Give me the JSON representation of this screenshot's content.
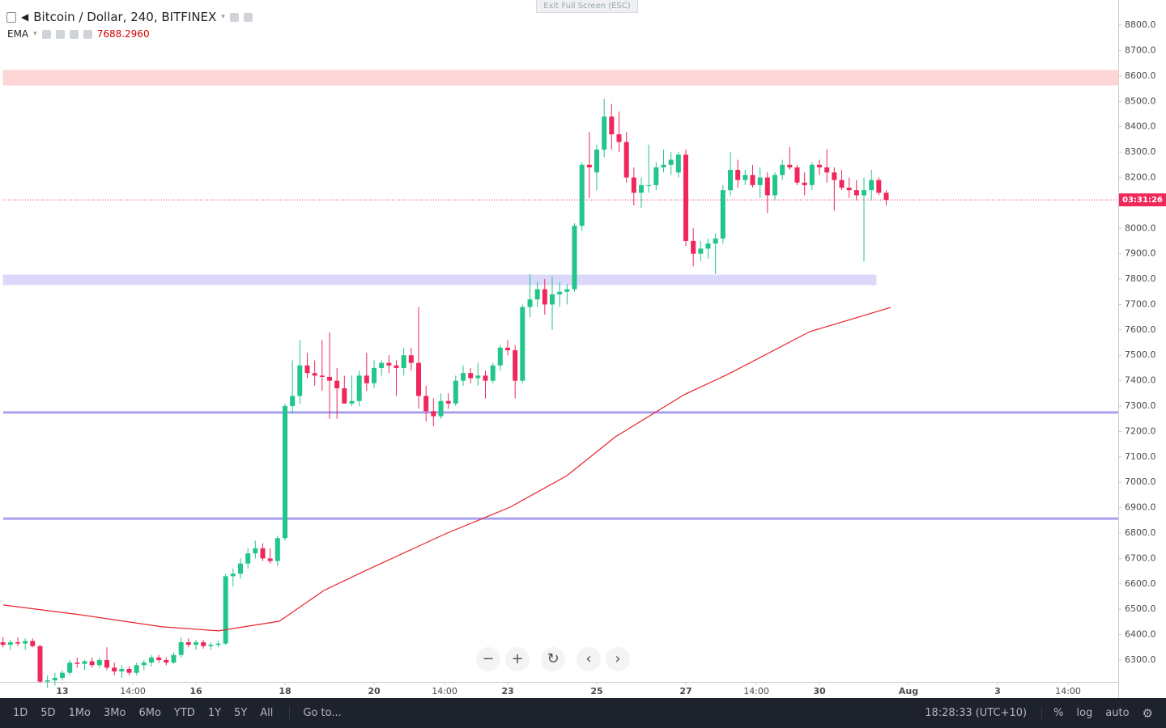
{
  "header": {
    "symbol": "Bitcoin / Dollar, 240, BITFINEX",
    "indicator": "EMA",
    "indicator_value": "7688.2960",
    "exit_fullscreen": "Exit Full Screen (ESC)"
  },
  "toolbar": {
    "ranges": [
      "1D",
      "5D",
      "1Mo",
      "3Mo",
      "6Mo",
      "YTD",
      "1Y",
      "5Y",
      "All"
    ],
    "goto": "Go to...",
    "clock": "18:28:33 (UTC+10)",
    "options": [
      "%",
      "log",
      "auto"
    ]
  },
  "chart_data": {
    "type": "candlestick",
    "up_color": "#22c58b",
    "down_color": "#f0275b",
    "xlim": [
      11.673,
      36.709
    ],
    "ylim": [
      6214,
      8899
    ],
    "xticks": [
      13,
      {
        "value": 14.583,
        "label": "14:00"
      },
      16,
      18,
      20,
      {
        "value": 21.583,
        "label": "14:00"
      },
      23,
      25,
      27,
      {
        "value": 28.583,
        "label": "14:00"
      },
      30,
      {
        "value": 32,
        "label": "Aug"
      },
      {
        "value": 34,
        "label": "3"
      },
      {
        "value": 35.583,
        "label": "14:00"
      }
    ],
    "yticks": [
      {
        "value": 6300,
        "label": "6300.0"
      },
      {
        "value": 6400,
        "label": "6400.0"
      },
      {
        "value": 6500,
        "label": "6500.0"
      },
      {
        "value": 6600,
        "label": "6600.0"
      },
      {
        "value": 6700,
        "label": "6700.0"
      },
      {
        "value": 6800,
        "label": "6800.0"
      },
      {
        "value": 6900,
        "label": "6900.0"
      },
      {
        "value": 7000,
        "label": "7000.0"
      },
      {
        "value": 7100,
        "label": "7100.0"
      },
      {
        "value": 7200,
        "label": "7200.0"
      },
      {
        "value": 7300,
        "label": "7300.0"
      },
      {
        "value": 7400,
        "label": "7400.0"
      },
      {
        "value": 7500,
        "label": "7500.0"
      },
      {
        "value": 7600,
        "label": "7600.0"
      },
      {
        "value": 7700,
        "label": "7700.0"
      },
      {
        "value": 7800,
        "label": "7800.0"
      },
      {
        "value": 7900,
        "label": "7900.0"
      },
      {
        "value": 8000,
        "label": "8000.0"
      },
      {
        "value": 8100,
        "label": "8100.0"
      },
      {
        "value": 8200,
        "label": "8200.0"
      },
      {
        "value": 8300,
        "label": "8300.0"
      },
      {
        "value": 8400,
        "label": "8400.0"
      },
      {
        "value": 8500,
        "label": "8500.0"
      },
      {
        "value": 8600,
        "label": "8600.0"
      },
      {
        "value": 8700,
        "label": "8700.0"
      },
      {
        "value": 8800,
        "label": "8800.0"
      }
    ],
    "x": [
      11.667,
      11.833,
      12,
      12.167,
      12.333,
      12.5,
      12.667,
      12.833,
      13,
      13.167,
      13.333,
      13.5,
      13.667,
      13.833,
      14,
      14.167,
      14.333,
      14.5,
      14.667,
      14.833,
      15,
      15.167,
      15.333,
      15.5,
      15.667,
      15.833,
      16,
      16.167,
      16.333,
      16.5,
      16.667,
      16.833,
      17,
      17.167,
      17.333,
      17.5,
      17.667,
      17.833,
      18,
      18.167,
      18.333,
      18.5,
      18.667,
      18.833,
      19,
      19.167,
      19.333,
      19.5,
      19.667,
      19.833,
      20,
      20.167,
      20.333,
      20.5,
      20.667,
      20.833,
      21,
      21.167,
      21.333,
      21.5,
      21.667,
      21.833,
      22,
      22.167,
      22.333,
      22.5,
      22.667,
      22.833,
      23,
      23.167,
      23.333,
      23.5,
      23.667,
      23.833,
      24,
      24.167,
      24.333,
      24.5,
      24.667,
      24.833,
      25,
      25.167,
      25.333,
      25.5,
      25.667,
      25.833,
      26,
      26.167,
      26.333,
      26.5,
      26.667,
      26.833,
      27,
      27.167,
      27.333,
      27.5,
      27.667,
      27.833,
      28,
      28.167,
      28.333,
      28.5,
      28.667,
      28.833,
      29,
      29.167,
      29.333,
      29.5,
      29.667,
      29.833,
      30,
      30.167,
      30.333,
      30.5,
      30.667,
      30.833,
      31,
      31.167,
      31.333,
      31.5
    ],
    "open": [
      6370,
      6360,
      6370,
      6365,
      6375,
      6355,
      6215,
      6220,
      6230,
      6250,
      6290,
      6285,
      6295,
      6280,
      6300,
      6270,
      6255,
      6265,
      6250,
      6280,
      6290,
      6310,
      6300,
      6290,
      6320,
      6370,
      6360,
      6370,
      6355,
      6360,
      6365,
      6630,
      6640,
      6680,
      6720,
      6740,
      6700,
      6690,
      6780,
      7300,
      7340,
      7460,
      7430,
      7420,
      7415,
      7400,
      7370,
      7310,
      7320,
      7420,
      7390,
      7450,
      7470,
      7460,
      7450,
      7500,
      7470,
      7340,
      7280,
      7260,
      7320,
      7310,
      7400,
      7430,
      7410,
      7420,
      7400,
      7460,
      7530,
      7520,
      7400,
      7690,
      7720,
      7760,
      7700,
      7740,
      7750,
      7760,
      8010,
      8250,
      8220,
      8310,
      8440,
      8370,
      8340,
      8200,
      8140,
      8170,
      8170,
      8240,
      8250,
      8220,
      8290,
      7950,
      7900,
      7920,
      7940,
      7960,
      8150,
      8230,
      8190,
      8210,
      8170,
      8200,
      8130,
      8210,
      8250,
      8240,
      8180,
      8170,
      8250,
      8240,
      8220,
      8190,
      8160,
      8150,
      8130,
      8150,
      8190,
      8140
    ],
    "high": [
      6390,
      6380,
      6390,
      6385,
      6385,
      6360,
      6240,
      6250,
      6260,
      6300,
      6310,
      6300,
      6310,
      6310,
      6350,
      6290,
      6280,
      6275,
      6290,
      6300,
      6320,
      6320,
      6310,
      6330,
      6390,
      6385,
      6380,
      6380,
      6370,
      6375,
      6640,
      6660,
      6700,
      6740,
      6770,
      6760,
      6740,
      6790,
      7310,
      7480,
      7560,
      7510,
      7480,
      7560,
      7590,
      7450,
      7420,
      7420,
      7440,
      7510,
      7480,
      7480,
      7500,
      7480,
      7530,
      7530,
      7690,
      7380,
      7330,
      7350,
      7350,
      7420,
      7460,
      7450,
      7470,
      7440,
      7470,
      7540,
      7560,
      7540,
      7700,
      7820,
      7790,
      7800,
      7810,
      7790,
      7780,
      8020,
      8260,
      8380,
      8330,
      8510,
      8490,
      8460,
      8380,
      8240,
      8200,
      8330,
      8260,
      8310,
      8300,
      8300,
      8310,
      8000,
      7950,
      7960,
      7980,
      8170,
      8300,
      8270,
      8230,
      8250,
      8240,
      8220,
      8220,
      8270,
      8320,
      8250,
      8220,
      8260,
      8270,
      8310,
      8240,
      8230,
      8200,
      8190,
      8200,
      8230,
      8200,
      8150
    ],
    "low": [
      6350,
      6340,
      6355,
      6340,
      6350,
      6210,
      6190,
      6200,
      6220,
      6240,
      6270,
      6260,
      6270,
      6270,
      6260,
      6240,
      6230,
      6240,
      6240,
      6260,
      6275,
      6290,
      6280,
      6285,
      6310,
      6350,
      6340,
      6345,
      6340,
      6350,
      6360,
      6590,
      6620,
      6660,
      6700,
      6690,
      6680,
      6670,
      6770,
      7270,
      7310,
      7410,
      7380,
      7360,
      7250,
      7250,
      7310,
      7300,
      7300,
      7360,
      7370,
      7420,
      7430,
      7340,
      7420,
      7440,
      7290,
      7240,
      7220,
      7250,
      7290,
      7300,
      7380,
      7390,
      7380,
      7330,
      7390,
      7440,
      7500,
      7330,
      7390,
      7650,
      7690,
      7660,
      7600,
      7690,
      7700,
      7750,
      7990,
      8120,
      8150,
      8280,
      8310,
      8300,
      8180,
      8090,
      8080,
      8140,
      8150,
      8220,
      8210,
      8200,
      7930,
      7850,
      7870,
      7880,
      7820,
      7940,
      8130,
      8160,
      8170,
      8160,
      8120,
      8060,
      8110,
      8190,
      8230,
      8170,
      8130,
      8150,
      8210,
      8180,
      8070,
      8150,
      8120,
      8110,
      7870,
      8110,
      8130,
      8090
    ],
    "close": [
      6360,
      6370,
      6365,
      6375,
      6355,
      6215,
      6220,
      6230,
      6250,
      6290,
      6285,
      6295,
      6280,
      6300,
      6270,
      6255,
      6265,
      6250,
      6280,
      6290,
      6310,
      6300,
      6290,
      6320,
      6370,
      6360,
      6370,
      6355,
      6360,
      6365,
      6630,
      6640,
      6680,
      6720,
      6740,
      6700,
      6690,
      6780,
      7300,
      7340,
      7460,
      7430,
      7420,
      7415,
      7400,
      7370,
      7310,
      7320,
      7420,
      7390,
      7450,
      7470,
      7460,
      7450,
      7500,
      7470,
      7340,
      7280,
      7260,
      7320,
      7310,
      7400,
      7430,
      7410,
      7420,
      7400,
      7460,
      7530,
      7520,
      7400,
      7690,
      7720,
      7760,
      7700,
      7740,
      7750,
      7760,
      8010,
      8250,
      8240,
      8310,
      8440,
      8370,
      8340,
      8200,
      8140,
      8170,
      8170,
      8240,
      8250,
      8270,
      8290,
      7950,
      7900,
      7920,
      7940,
      7960,
      8150,
      8230,
      8190,
      8210,
      8170,
      8200,
      8130,
      8210,
      8250,
      8240,
      8180,
      8170,
      8250,
      8240,
      8220,
      8190,
      8160,
      8150,
      8130,
      8150,
      8190,
      8140,
      8112
    ],
    "ema": {
      "color": "#e8222c",
      "x": [
        11.673,
        13.418,
        15.236,
        16.509,
        17.873,
        18.873,
        19.782,
        21.6,
        23.055,
        24.327,
        25.418,
        26.964,
        27.964,
        29.782,
        31.6
      ],
      "values": [
        6517,
        6478,
        6431,
        6415,
        6453,
        6574,
        6650,
        6797,
        6902,
        7026,
        7179,
        7345,
        7427,
        7593,
        7688.296
      ]
    },
    "zones": [
      {
        "from": 8564,
        "to": 8622,
        "color": "#fdd5d6"
      },
      {
        "from": 7778,
        "to": 7816,
        "color": "#dcd8fb",
        "end": 31.27
      }
    ],
    "levels": [
      {
        "value": 7275,
        "color": "#a9a0f0"
      },
      {
        "value": 6857,
        "color": "#a9a0f0"
      }
    ],
    "price_line": 8112,
    "price_color": "#f0275b",
    "countdown": "03:31:26"
  }
}
